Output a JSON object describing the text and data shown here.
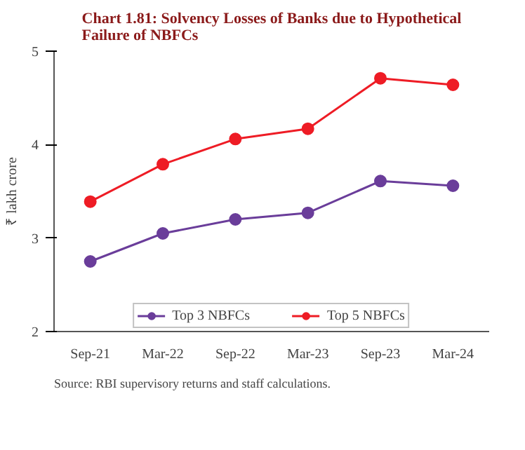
{
  "chart_data": {
    "type": "line",
    "title": "Chart 1.81: Solvency Losses of Banks due to Hypothetical Failure of NBFCs",
    "ylabel": "₹ lakh crore",
    "categories": [
      "Sep-21",
      "Mar-22",
      "Sep-22",
      "Mar-23",
      "Sep-23",
      "Mar-24"
    ],
    "series": [
      {
        "name": "Top 3 NBFCs",
        "color": "#6a3d9a",
        "values": [
          2.75,
          3.05,
          3.2,
          3.27,
          3.61,
          3.56
        ]
      },
      {
        "name": "Top 5 NBFCs",
        "color": "#ee1c25",
        "values": [
          3.39,
          3.79,
          4.06,
          4.17,
          4.71,
          4.64
        ]
      }
    ],
    "ylim": [
      2,
      5
    ],
    "yticks": [
      2,
      3,
      4,
      5
    ],
    "grid": false,
    "legend": "bottom",
    "marker": "circle",
    "line_style": "solid",
    "annotations": [
      "Source: RBI supervisory returns and staff calculations."
    ]
  }
}
